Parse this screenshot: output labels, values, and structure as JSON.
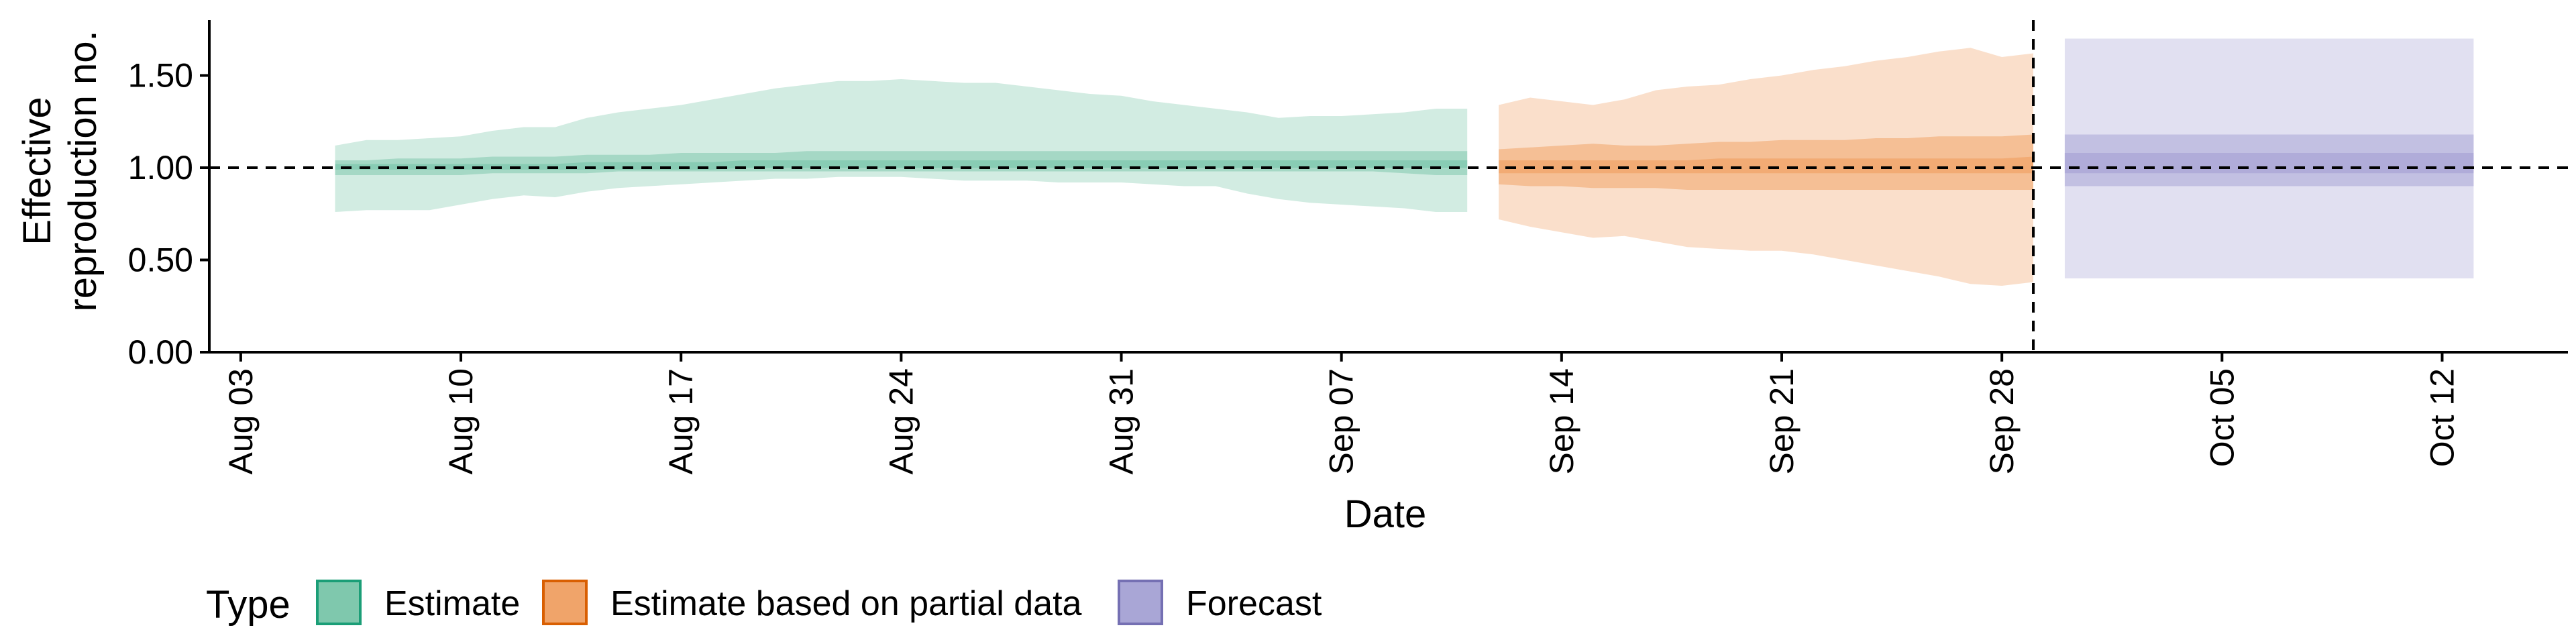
{
  "chart_data": {
    "type": "area",
    "xlabel": "Date",
    "ylabel_lines": [
      "Effective",
      "reproduction no."
    ],
    "ylim": [
      0,
      1.8
    ],
    "yticks": [
      0.0,
      0.5,
      1.0,
      1.5
    ],
    "ytick_labels": [
      "0.00",
      "0.50",
      "1.00",
      "1.50"
    ],
    "xlim": [
      "2020-08-02",
      "2020-10-16"
    ],
    "xticks": [
      "2020-08-03",
      "2020-08-10",
      "2020-08-17",
      "2020-08-24",
      "2020-08-31",
      "2020-09-07",
      "2020-09-14",
      "2020-09-21",
      "2020-09-28",
      "2020-10-05",
      "2020-10-12"
    ],
    "xtick_labels": [
      "Aug 03",
      "Aug 10",
      "Aug 17",
      "Aug 24",
      "Aug 31",
      "Sep 07",
      "Sep 14",
      "Sep 21",
      "Sep 28",
      "Oct 05",
      "Oct 12"
    ],
    "reference_line_y": 1.0,
    "vertical_reference_date": "2020-09-29",
    "grid": false,
    "legend": {
      "title": "Type",
      "position": "bottom-left",
      "items": [
        "Estimate",
        "Estimate based on partial data",
        "Forecast"
      ]
    },
    "series": [
      {
        "name": "Estimate",
        "fill": "#7fc8ad",
        "stroke": "#1b9e77",
        "x": [
          "2020-08-06",
          "2020-08-07",
          "2020-08-08",
          "2020-08-09",
          "2020-08-10",
          "2020-08-11",
          "2020-08-12",
          "2020-08-13",
          "2020-08-14",
          "2020-08-15",
          "2020-08-16",
          "2020-08-17",
          "2020-08-18",
          "2020-08-19",
          "2020-08-20",
          "2020-08-21",
          "2020-08-22",
          "2020-08-23",
          "2020-08-24",
          "2020-08-25",
          "2020-08-26",
          "2020-08-27",
          "2020-08-28",
          "2020-08-29",
          "2020-08-30",
          "2020-08-31",
          "2020-09-01",
          "2020-09-02",
          "2020-09-03",
          "2020-09-04",
          "2020-09-05",
          "2020-09-06",
          "2020-09-07",
          "2020-09-08",
          "2020-09-09",
          "2020-09-10",
          "2020-09-11"
        ],
        "upper90": [
          1.12,
          1.15,
          1.15,
          1.16,
          1.17,
          1.2,
          1.22,
          1.22,
          1.27,
          1.3,
          1.32,
          1.34,
          1.37,
          1.4,
          1.43,
          1.45,
          1.47,
          1.47,
          1.48,
          1.47,
          1.46,
          1.46,
          1.44,
          1.42,
          1.4,
          1.39,
          1.36,
          1.34,
          1.32,
          1.3,
          1.27,
          1.28,
          1.28,
          1.29,
          1.3,
          1.32,
          1.32
        ],
        "lower90": [
          0.76,
          0.77,
          0.77,
          0.77,
          0.8,
          0.83,
          0.85,
          0.84,
          0.87,
          0.89,
          0.9,
          0.91,
          0.92,
          0.93,
          0.94,
          0.94,
          0.95,
          0.95,
          0.95,
          0.94,
          0.93,
          0.93,
          0.93,
          0.92,
          0.92,
          0.92,
          0.91,
          0.9,
          0.9,
          0.86,
          0.83,
          0.81,
          0.8,
          0.79,
          0.78,
          0.76,
          0.76
        ],
        "upper50": [
          1.04,
          1.04,
          1.05,
          1.05,
          1.05,
          1.06,
          1.06,
          1.06,
          1.07,
          1.07,
          1.07,
          1.08,
          1.08,
          1.08,
          1.08,
          1.09,
          1.09,
          1.09,
          1.09,
          1.09,
          1.09,
          1.09,
          1.09,
          1.09,
          1.09,
          1.09,
          1.09,
          1.09,
          1.09,
          1.09,
          1.09,
          1.09,
          1.09,
          1.09,
          1.09,
          1.09,
          1.09
        ],
        "lower50": [
          0.96,
          0.96,
          0.96,
          0.96,
          0.96,
          0.97,
          0.97,
          0.97,
          0.97,
          0.98,
          0.98,
          0.98,
          0.98,
          0.98,
          0.98,
          0.98,
          0.98,
          0.98,
          0.98,
          0.98,
          0.98,
          0.98,
          0.98,
          0.98,
          0.98,
          0.98,
          0.98,
          0.98,
          0.98,
          0.98,
          0.98,
          0.98,
          0.98,
          0.98,
          0.97,
          0.96,
          0.96
        ],
        "upper20": [
          1.02,
          1.02,
          1.02,
          1.02,
          1.02,
          1.02,
          1.02,
          1.02,
          1.03,
          1.03,
          1.03,
          1.03,
          1.03,
          1.04,
          1.04,
          1.04,
          1.04,
          1.04,
          1.04,
          1.04,
          1.04,
          1.04,
          1.04,
          1.04,
          1.04,
          1.04,
          1.04,
          1.04,
          1.04,
          1.04,
          1.04,
          1.04,
          1.04,
          1.04,
          1.04,
          1.04,
          1.04
        ],
        "lower20": [
          0.99,
          0.99,
          0.99,
          0.99,
          0.99,
          0.99,
          0.99,
          0.99,
          0.99,
          0.99,
          0.99,
          0.99,
          0.99,
          1.0,
          1.0,
          1.0,
          1.0,
          1.0,
          1.0,
          1.0,
          1.0,
          1.0,
          1.0,
          1.0,
          1.0,
          1.0,
          1.0,
          1.0,
          1.0,
          1.0,
          1.0,
          1.0,
          1.0,
          1.0,
          1.0,
          1.0,
          1.0
        ]
      },
      {
        "name": "Estimate based on partial data",
        "fill": "#f0a46a",
        "stroke": "#d95f02",
        "x": [
          "2020-09-12",
          "2020-09-13",
          "2020-09-14",
          "2020-09-15",
          "2020-09-16",
          "2020-09-17",
          "2020-09-18",
          "2020-09-19",
          "2020-09-20",
          "2020-09-21",
          "2020-09-22",
          "2020-09-23",
          "2020-09-24",
          "2020-09-25",
          "2020-09-26",
          "2020-09-27",
          "2020-09-28",
          "2020-09-29"
        ],
        "upper90": [
          1.34,
          1.38,
          1.36,
          1.34,
          1.37,
          1.42,
          1.44,
          1.45,
          1.48,
          1.5,
          1.53,
          1.55,
          1.58,
          1.6,
          1.63,
          1.65,
          1.6,
          1.62
        ],
        "lower90": [
          0.72,
          0.68,
          0.65,
          0.62,
          0.63,
          0.6,
          0.57,
          0.56,
          0.55,
          0.55,
          0.53,
          0.5,
          0.47,
          0.44,
          0.41,
          0.37,
          0.36,
          0.38
        ],
        "upper50": [
          1.1,
          1.11,
          1.12,
          1.13,
          1.12,
          1.12,
          1.13,
          1.14,
          1.14,
          1.15,
          1.15,
          1.15,
          1.16,
          1.16,
          1.17,
          1.17,
          1.17,
          1.18
        ],
        "lower50": [
          0.91,
          0.9,
          0.9,
          0.89,
          0.89,
          0.89,
          0.88,
          0.88,
          0.88,
          0.88,
          0.88,
          0.88,
          0.88,
          0.88,
          0.88,
          0.88,
          0.88,
          0.88
        ],
        "upper20": [
          1.04,
          1.04,
          1.04,
          1.04,
          1.04,
          1.04,
          1.04,
          1.05,
          1.05,
          1.05,
          1.05,
          1.05,
          1.05,
          1.05,
          1.05,
          1.05,
          1.05,
          1.06
        ],
        "lower20": [
          0.97,
          0.97,
          0.97,
          0.97,
          0.97,
          0.97,
          0.97,
          0.97,
          0.97,
          0.97,
          0.97,
          0.97,
          0.97,
          0.97,
          0.97,
          0.97,
          0.97,
          0.97
        ]
      },
      {
        "name": "Forecast",
        "fill": "#a9a6d6",
        "stroke": "#7570b3",
        "x": [
          "2020-09-30",
          "2020-10-13"
        ],
        "upper90": [
          1.7,
          1.7
        ],
        "lower90": [
          0.4,
          0.4
        ],
        "upper50": [
          1.18,
          1.18
        ],
        "lower50": [
          0.9,
          0.9
        ],
        "upper20": [
          1.08,
          1.08
        ],
        "lower20": [
          0.97,
          0.97
        ]
      }
    ]
  }
}
